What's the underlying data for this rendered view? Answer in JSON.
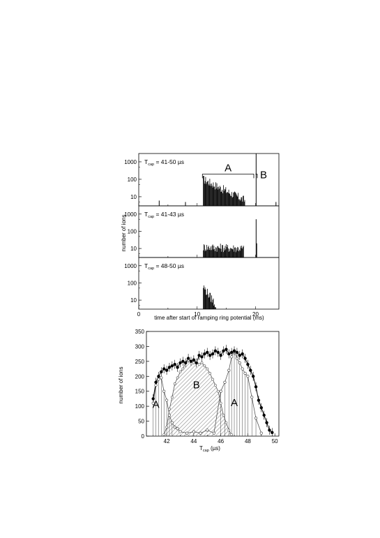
{
  "figure": {
    "xlabel_top": "time after start of ramping ring potential (ms)",
    "ylabel_top": "number of ions",
    "xlabel_bottom_main": "T",
    "xlabel_bottom_sub": "cap",
    "xlabel_bottom_unit": " (µs)",
    "ylabel_bottom": "number of ions"
  },
  "chart_data": [
    {
      "type": "bar",
      "panel": "top-1",
      "label_main": "T",
      "label_sub": "cap",
      "label_rest": " = 41-50 µs",
      "annotations": [
        "A",
        "B"
      ],
      "yscale": "log",
      "ylim": [
        3,
        3000
      ],
      "xlim": [
        0,
        24
      ],
      "yticks": [
        "10",
        "100",
        "1000"
      ],
      "spikes": [
        [
          3.5,
          6
        ],
        [
          8.0,
          5
        ],
        [
          20.1,
          3000
        ],
        [
          23.5,
          5
        ]
      ],
      "region": {
        "from": 11.0,
        "to": 18.2,
        "start": 100,
        "end": 6
      }
    },
    {
      "type": "bar",
      "panel": "top-2",
      "label_main": "T",
      "label_sub": "cap",
      "label_rest": " = 41-43 µs",
      "yscale": "log",
      "ylim": [
        3,
        3000
      ],
      "xlim": [
        0,
        24
      ],
      "yticks": [
        "10",
        "100",
        "1000"
      ],
      "spikes": [
        [
          20.1,
          500
        ],
        [
          20.2,
          20
        ]
      ],
      "region": {
        "from": 11.0,
        "to": 18.0,
        "start": 12,
        "end": 10
      }
    },
    {
      "type": "bar",
      "panel": "top-3",
      "label_main": "T",
      "label_sub": "cap",
      "label_rest": " = 48-50 µs",
      "yscale": "log",
      "ylim": [
        3,
        3000
      ],
      "xlim": [
        0,
        24
      ],
      "yticks": [
        "10",
        "100",
        "1000"
      ],
      "xticks": [
        "0",
        "10",
        "20"
      ],
      "spikes": [],
      "region": {
        "from": 11.0,
        "to": 13.2,
        "start": 60,
        "end": 5
      }
    },
    {
      "type": "line",
      "panel": "bottom",
      "annotations": [
        "A",
        "B",
        "A"
      ],
      "xlim": [
        40.5,
        50.3
      ],
      "ylim": [
        0,
        350
      ],
      "xticks": [
        "42",
        "44",
        "46",
        "48",
        "50"
      ],
      "yticks": [
        "0",
        "50",
        "100",
        "150",
        "200",
        "250",
        "300",
        "350"
      ],
      "series": [
        {
          "x": [
            41.0,
            41.2,
            41.4,
            41.6,
            41.8,
            42.0,
            42.2,
            42.4,
            42.6,
            42.8,
            43.0,
            43.2,
            43.4,
            43.6,
            43.8,
            44.0,
            44.2,
            44.4,
            44.6,
            44.8,
            45.0,
            45.2,
            45.4,
            45.6,
            45.8,
            46.0,
            46.2,
            46.4,
            46.6,
            46.8,
            47.0,
            47.2,
            47.4,
            47.6,
            47.8,
            48.0,
            48.2,
            48.4,
            48.6,
            48.8,
            49.0,
            49.2,
            49.4,
            49.6,
            49.8
          ],
          "y": [
            125,
            180,
            200,
            215,
            225,
            220,
            230,
            235,
            240,
            230,
            245,
            250,
            245,
            260,
            250,
            255,
            245,
            270,
            265,
            275,
            280,
            270,
            275,
            285,
            280,
            270,
            285,
            290,
            275,
            280,
            285,
            280,
            270,
            275,
            260,
            240,
            220,
            200,
            165,
            120,
            95,
            70,
            45,
            20,
            12
          ]
        },
        {
          "x": [
            41.0,
            41.2,
            41.4,
            41.6,
            41.8,
            42.0,
            42.2,
            42.4,
            42.6,
            42.8,
            43.0,
            43.5,
            44.0,
            44.5,
            45.0,
            45.5,
            46.0,
            46.3,
            46.6,
            46.8,
            47.0,
            47.2,
            47.4,
            47.6,
            47.8,
            48.0,
            48.3,
            48.6,
            49.0
          ],
          "y": [
            110,
            170,
            190,
            195,
            150,
            120,
            70,
            45,
            30,
            25,
            15,
            10,
            15,
            10,
            20,
            10,
            150,
            180,
            220,
            265,
            285,
            260,
            245,
            225,
            210,
            200,
            130,
            60,
            10
          ]
        },
        {
          "x": [
            41.8,
            42.0,
            42.2,
            42.4,
            42.6,
            42.8,
            43.0,
            43.2,
            43.4,
            43.6,
            43.8,
            44.0,
            44.2,
            44.4,
            44.6,
            44.8,
            45.0,
            45.2,
            45.4,
            45.6,
            45.8,
            46.0,
            46.2,
            46.4,
            46.6,
            46.8
          ],
          "y": [
            5,
            30,
            90,
            130,
            175,
            195,
            215,
            225,
            245,
            255,
            250,
            245,
            250,
            240,
            245,
            235,
            225,
            210,
            190,
            170,
            150,
            110,
            70,
            45,
            20,
            5
          ]
        }
      ]
    }
  ]
}
